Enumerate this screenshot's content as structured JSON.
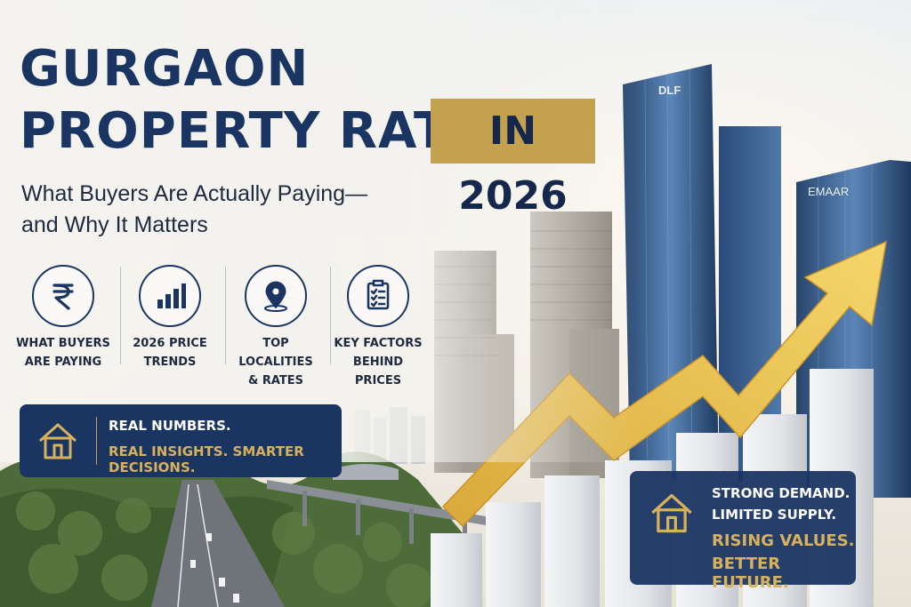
{
  "headline": {
    "line1": "GURGAON",
    "line2": "PROPERTY RATES",
    "badge": "IN 2026"
  },
  "subheadline": {
    "line1": "What Buyers Are Actually Paying—",
    "line2": "and Why It Matters"
  },
  "features": [
    {
      "icon": "rupee-icon",
      "line1": "WHAT BUYERS",
      "line2": "ARE PAYING"
    },
    {
      "icon": "bar-chart-icon",
      "line1": "2026 PRICE",
      "line2": "TRENDS"
    },
    {
      "icon": "location-pin-icon",
      "line1": "TOP LOCALITIES",
      "line2": "& RATES"
    },
    {
      "icon": "checklist-icon",
      "line1": "KEY FACTORS",
      "line2": "BEHIND PRICES"
    }
  ],
  "banner_left": {
    "icon": "house-icon",
    "line1": "REAL NUMBERS.",
    "line2": "REAL INSIGHTS. SMARTER DECISIONS."
  },
  "banner_right": {
    "icon": "house-icon",
    "line1": "STRONG DEMAND.",
    "line2": "LIMITED SUPPLY.",
    "line3": "RISING VALUES.",
    "line4": "BETTER FUTURE."
  },
  "building_signs": {
    "dlf": "DLF",
    "emaar": "EMAAR"
  },
  "colors": {
    "navy": "#1b3563",
    "gold": "#c4a14f",
    "arrow": "#e9c247"
  }
}
